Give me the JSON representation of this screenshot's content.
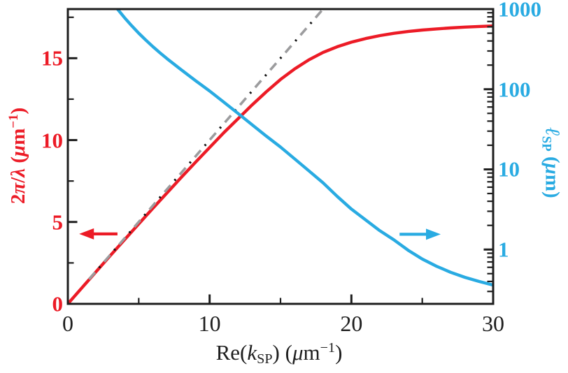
{
  "figure": {
    "background": "#ffffff",
    "colors": {
      "red": "#EC1B26",
      "blue": "#29ABE2",
      "gray": "#9C9C9E",
      "axis": "#1E1E1E",
      "dash_dot": "#151515"
    }
  },
  "chart_data": {
    "type": "line",
    "title": "",
    "legend": "none",
    "grid": "off",
    "x_axis": {
      "label": "Re(kSP) (μm−1)",
      "label_parts": [
        {
          "text": "Re(",
          "style": "normal"
        },
        {
          "text": "k",
          "style": "italic"
        },
        {
          "text": "SP",
          "style": "sub"
        },
        {
          "text": ") (",
          "style": "normal"
        },
        {
          "text": "μ",
          "style": "italic"
        },
        {
          "text": "m",
          "style": "normal"
        },
        {
          "text": "−1",
          "style": "sup"
        },
        {
          "text": ")",
          "style": "normal"
        }
      ],
      "scale": "linear",
      "range": [
        0,
        30
      ],
      "major_ticks": [
        0,
        10,
        20,
        30
      ],
      "major_tick_labels": [
        "0",
        "10",
        "20",
        "30"
      ],
      "minor_ticks": [
        5,
        15,
        25
      ]
    },
    "y_left_axis": {
      "label": "2π/λ (μm−1)",
      "label_parts": [
        {
          "text": "2",
          "style": "normal"
        },
        {
          "text": "π",
          "style": "italic"
        },
        {
          "text": "/",
          "style": "normal"
        },
        {
          "text": "λ",
          "style": "italic"
        },
        {
          "text": " (",
          "style": "normal"
        },
        {
          "text": "μ",
          "style": "italic"
        },
        {
          "text": "m",
          "style": "normal"
        },
        {
          "text": "−1",
          "style": "sup"
        },
        {
          "text": ")",
          "style": "normal"
        }
      ],
      "color": "#EC1B26",
      "scale": "linear",
      "range": [
        0,
        18
      ],
      "major_ticks": [
        0,
        5,
        10,
        15
      ],
      "major_tick_labels": [
        "0",
        "5",
        "10",
        "15"
      ],
      "minor_ticks": [
        2.5,
        7.5,
        12.5,
        17.5
      ]
    },
    "y_right_axis": {
      "label": "ℓSP (μm)",
      "label_parts": [
        {
          "text": "ℓ",
          "style": "italic"
        },
        {
          "text": "SP",
          "style": "sub"
        },
        {
          "text": " (",
          "style": "normal"
        },
        {
          "text": "μ",
          "style": "italic"
        },
        {
          "text": "m",
          "style": "normal"
        },
        {
          "text": ")",
          "style": "normal"
        }
      ],
      "color": "#29ABE2",
      "scale": "log",
      "range": [
        0.21,
        1000
      ],
      "major_ticks": [
        1,
        10,
        100,
        1000
      ],
      "major_tick_labels": [
        "1",
        "10",
        "100",
        "1000"
      ],
      "minor_mantissas": [
        2,
        3,
        4,
        5,
        6,
        7,
        8,
        9
      ]
    },
    "series": [
      {
        "name": "spp-dispersion-curve",
        "axis": "left",
        "color": "#EC1B26",
        "style": "solid",
        "points": [
          [
            0,
            0
          ],
          [
            1,
            0.99
          ],
          [
            2,
            1.97
          ],
          [
            3,
            2.95
          ],
          [
            4,
            3.92
          ],
          [
            5,
            4.88
          ],
          [
            6,
            5.84
          ],
          [
            7,
            6.78
          ],
          [
            8,
            7.72
          ],
          [
            9,
            8.64
          ],
          [
            10,
            9.55
          ],
          [
            11,
            10.45
          ],
          [
            12,
            11.3
          ],
          [
            13,
            12.15
          ],
          [
            14,
            12.95
          ],
          [
            15,
            13.7
          ],
          [
            16,
            14.35
          ],
          [
            17,
            14.9
          ],
          [
            18,
            15.35
          ],
          [
            19,
            15.7
          ],
          [
            20,
            15.98
          ],
          [
            21,
            16.2
          ],
          [
            22,
            16.38
          ],
          [
            23,
            16.52
          ],
          [
            24,
            16.63
          ],
          [
            25,
            16.72
          ],
          [
            26,
            16.79
          ],
          [
            27,
            16.85
          ],
          [
            28,
            16.9
          ],
          [
            29,
            16.94
          ],
          [
            30,
            16.97
          ]
        ]
      },
      {
        "name": "light-line",
        "axis": "left",
        "color": "#9C9C9E",
        "style": "dash-dot",
        "points": [
          [
            1.5,
            1.5
          ],
          [
            17.9,
            17.9
          ]
        ]
      },
      {
        "name": "propagation-length-curve",
        "axis": "right",
        "color": "#29ABE2",
        "style": "solid",
        "points": [
          [
            3.5,
            1000
          ],
          [
            4,
            780
          ],
          [
            4.5,
            620
          ],
          [
            5,
            500
          ],
          [
            5.5,
            410
          ],
          [
            6,
            340
          ],
          [
            6.5,
            285
          ],
          [
            7,
            240
          ],
          [
            7.5,
            205
          ],
          [
            8,
            175
          ],
          [
            9,
            128
          ],
          [
            10,
            95
          ],
          [
            11,
            69
          ],
          [
            12,
            50
          ],
          [
            13,
            36
          ],
          [
            14,
            26
          ],
          [
            15,
            19
          ],
          [
            16,
            13.5
          ],
          [
            17,
            9.6
          ],
          [
            18,
            6.8
          ],
          [
            19,
            4.6
          ],
          [
            20,
            3.2
          ],
          [
            21,
            2.35
          ],
          [
            22,
            1.72
          ],
          [
            23,
            1.32
          ],
          [
            24,
            0.98
          ],
          [
            25,
            0.76
          ],
          [
            26,
            0.62
          ],
          [
            27,
            0.52
          ],
          [
            28,
            0.45
          ],
          [
            29,
            0.4
          ],
          [
            30,
            0.36
          ]
        ]
      }
    ],
    "annotations": [
      {
        "name": "left-axis-arrow",
        "color": "#EC1B26",
        "axis": "left",
        "y": 4.27,
        "x_tail": 3.5,
        "x_tip": 0.8,
        "direction": "left"
      },
      {
        "name": "right-axis-arrow",
        "color": "#29ABE2",
        "axis": "right",
        "y": 1.55,
        "x_tail": 23.4,
        "x_tip": 26.3,
        "direction": "right"
      }
    ]
  }
}
